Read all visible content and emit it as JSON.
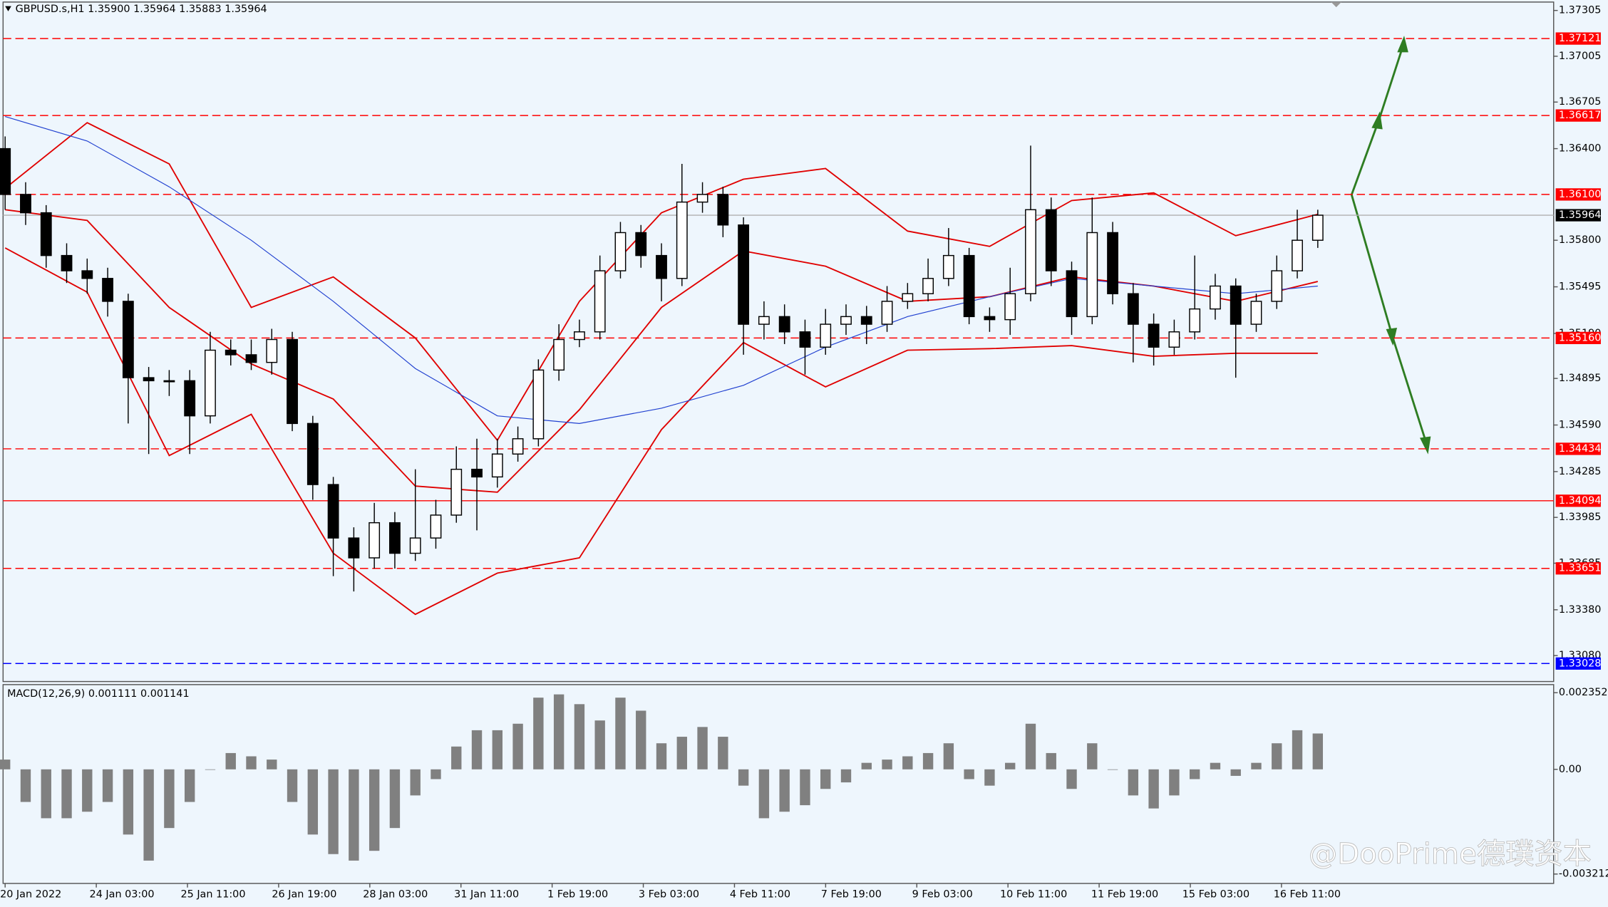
{
  "chart_data": {
    "type": "candlestick",
    "title": "GBPUSD.s,H1  1.35900 1.35964 1.35883 1.35964",
    "candles": {
      "open": [
        1.364,
        1.361,
        1.3598,
        1.357,
        1.356,
        1.3555,
        1.354,
        1.349,
        1.3488,
        1.3488,
        1.3465,
        1.3508,
        1.3505,
        1.35,
        1.3515,
        1.346,
        1.342,
        1.3385,
        1.3372,
        1.3395,
        1.3375,
        1.3385,
        1.34,
        1.343,
        1.3425,
        1.344,
        1.345,
        1.3495,
        1.3515,
        1.352,
        1.356,
        1.3585,
        1.357,
        1.3555,
        1.3605,
        1.361,
        1.359,
        1.3525,
        1.353,
        1.352,
        1.351,
        1.3525,
        1.353,
        1.3525,
        1.354,
        1.3545,
        1.3555,
        1.357,
        1.353,
        1.3528,
        1.3545,
        1.36,
        1.356,
        1.353,
        1.3585,
        1.3545,
        1.3525,
        1.351,
        1.352,
        1.3535,
        1.355,
        1.3525,
        1.354,
        1.356,
        1.358
      ],
      "high": [
        1.3648,
        1.3618,
        1.3603,
        1.3578,
        1.3568,
        1.3562,
        1.3545,
        1.3497,
        1.3495,
        1.3495,
        1.352,
        1.3515,
        1.3515,
        1.3522,
        1.352,
        1.3465,
        1.3425,
        1.3392,
        1.3408,
        1.3402,
        1.343,
        1.341,
        1.3445,
        1.345,
        1.345,
        1.3458,
        1.3502,
        1.3525,
        1.3528,
        1.357,
        1.3592,
        1.359,
        1.3578,
        1.363,
        1.3618,
        1.3615,
        1.3595,
        1.354,
        1.3538,
        1.3528,
        1.3535,
        1.3538,
        1.3537,
        1.355,
        1.3552,
        1.3568,
        1.3588,
        1.3575,
        1.3536,
        1.3562,
        1.3642,
        1.3608,
        1.3566,
        1.3608,
        1.3592,
        1.3552,
        1.3532,
        1.3528,
        1.357,
        1.3558,
        1.3555,
        1.3545,
        1.357,
        1.36,
        1.36
      ],
      "low": [
        1.36,
        1.359,
        1.3562,
        1.3552,
        1.3545,
        1.353,
        1.346,
        1.344,
        1.3478,
        1.344,
        1.346,
        1.3498,
        1.3495,
        1.3492,
        1.3455,
        1.341,
        1.336,
        1.335,
        1.3365,
        1.3365,
        1.337,
        1.3378,
        1.3395,
        1.339,
        1.3418,
        1.3435,
        1.3445,
        1.3488,
        1.351,
        1.3515,
        1.3555,
        1.3562,
        1.354,
        1.355,
        1.3598,
        1.3582,
        1.3505,
        1.3515,
        1.3512,
        1.3492,
        1.3505,
        1.3518,
        1.3512,
        1.352,
        1.3535,
        1.354,
        1.355,
        1.3525,
        1.352,
        1.3518,
        1.354,
        1.355,
        1.3518,
        1.3525,
        1.3538,
        1.35,
        1.3498,
        1.3505,
        1.3515,
        1.3528,
        1.349,
        1.352,
        1.3535,
        1.3555,
        1.3575
      ],
      "close": [
        1.361,
        1.3598,
        1.357,
        1.356,
        1.3555,
        1.354,
        1.349,
        1.3488,
        1.3488,
        1.3465,
        1.3508,
        1.3505,
        1.35,
        1.3515,
        1.346,
        1.342,
        1.3385,
        1.3372,
        1.3395,
        1.3375,
        1.3385,
        1.34,
        1.343,
        1.3425,
        1.344,
        1.345,
        1.3495,
        1.3515,
        1.352,
        1.356,
        1.3585,
        1.357,
        1.3555,
        1.3605,
        1.361,
        1.359,
        1.3525,
        1.353,
        1.352,
        1.351,
        1.3525,
        1.353,
        1.3525,
        1.354,
        1.3545,
        1.3555,
        1.357,
        1.353,
        1.3528,
        1.3545,
        1.36,
        1.356,
        1.353,
        1.3585,
        1.3545,
        1.3525,
        1.351,
        1.352,
        1.3535,
        1.355,
        1.3525,
        1.354,
        1.356,
        1.358,
        1.35964
      ]
    },
    "series": [
      {
        "color": "#e00000",
        "x": [
          0,
          4,
          8,
          12,
          16,
          20,
          24,
          28,
          32,
          36,
          40,
          44,
          48,
          52,
          56,
          60,
          64
        ],
        "values": [
          1.3614,
          1.3657,
          1.363,
          1.3536,
          1.3556,
          1.3516,
          1.3449,
          1.354,
          1.3598,
          1.362,
          1.3627,
          1.3586,
          1.3576,
          1.3606,
          1.3611,
          1.3583,
          1.3597
        ]
      },
      {
        "color": "#e00000",
        "x": [
          0,
          4,
          8,
          12,
          16,
          20,
          24,
          28,
          32,
          36,
          40,
          44,
          48,
          52,
          56,
          60,
          64
        ],
        "values": [
          1.36,
          1.3593,
          1.3536,
          1.3499,
          1.3476,
          1.3419,
          1.3415,
          1.3469,
          1.3536,
          1.3573,
          1.3563,
          1.354,
          1.3543,
          1.3556,
          1.355,
          1.354,
          1.3553
        ]
      },
      {
        "color": "#e00000",
        "x": [
          0,
          4,
          8,
          12,
          16,
          20,
          24,
          28,
          32,
          36,
          40,
          44,
          48,
          52,
          56,
          60,
          64
        ],
        "values": [
          1.3575,
          1.3546,
          1.3439,
          1.3466,
          1.3375,
          1.3335,
          1.3362,
          1.3372,
          1.3456,
          1.3513,
          1.3484,
          1.3508,
          1.3509,
          1.3511,
          1.3504,
          1.3506,
          1.3506
        ]
      },
      {
        "color": "#2040d0",
        "x": [
          0,
          4,
          8,
          12,
          16,
          20,
          24,
          28,
          32,
          36,
          40,
          44,
          48,
          52,
          56,
          60,
          64
        ],
        "values": [
          1.3661,
          1.3645,
          1.3615,
          1.358,
          1.354,
          1.3496,
          1.3465,
          1.346,
          1.347,
          1.3485,
          1.351,
          1.353,
          1.3543,
          1.3555,
          1.355,
          1.3545,
          1.355
        ]
      }
    ],
    "levels": [
      {
        "value": 1.37121,
        "color": "#ff0000",
        "dashed": true
      },
      {
        "value": 1.36617,
        "color": "#ff0000",
        "dashed": true
      },
      {
        "value": 1.361,
        "label": "1.36100",
        "color": "#ff0000",
        "dashed": true
      },
      {
        "value": 1.35964,
        "color": "#000000",
        "dashed": false
      },
      {
        "value": 1.3516,
        "label": "1.35160",
        "color": "#ff0000",
        "dashed": true
      },
      {
        "value": 1.34434,
        "color": "#ff0000",
        "dashed": true
      },
      {
        "value": 1.34094,
        "color": "#ff0000",
        "dashed": false
      },
      {
        "value": 1.33651,
        "color": "#ff0000",
        "dashed": true
      },
      {
        "value": 1.33028,
        "color": "#0000ff",
        "dashed": true
      }
    ],
    "ylim": [
      1.3291,
      1.3736
    ],
    "yticks": [
      1.37305,
      {
        "value": 1.37005,
        "label": "1.37005"
      },
      1.36705,
      {
        "value": 1.364,
        "label": "1.36400"
      },
      {
        "value": 1.358,
        "label": "1.35800"
      },
      1.35495,
      {
        "value": 1.3519,
        "label": "1.35190"
      },
      1.34895,
      {
        "value": 1.3459,
        "label": "1.34590"
      },
      1.34285,
      1.33985,
      1.33685,
      {
        "value": 1.3338,
        "label": "1.33380"
      },
      {
        "value": 1.3308,
        "label": "1.33080"
      }
    ],
    "x_labels": [
      "20 Jan 2022",
      "24 Jan 03:00",
      "25 Jan 11:00",
      "26 Jan 19:00",
      "28 Jan 03:00",
      "31 Jan 11:00",
      "1 Feb 19:00",
      "3 Feb 03:00",
      "4 Feb 11:00",
      "7 Feb 19:00",
      "9 Feb 03:00",
      "10 Feb 11:00",
      "11 Feb 19:00",
      "15 Feb 03:00",
      "16 Feb 11:00"
    ],
    "macd": {
      "title": "MACD(12,26,9) 0.001111 0.001141",
      "color": "#808080",
      "values": [
        0.0003,
        -0.001,
        -0.0015,
        -0.0015,
        -0.0013,
        -0.001,
        -0.002,
        -0.0028,
        -0.0018,
        -0.001,
        0.0,
        0.0005,
        0.0004,
        0.0003,
        -0.001,
        -0.002,
        -0.0026,
        -0.0028,
        -0.0025,
        -0.0018,
        -0.0008,
        -0.0003,
        0.0007,
        0.0012,
        0.0012,
        0.0014,
        0.0022,
        0.0023,
        0.002,
        0.0015,
        0.0022,
        0.0018,
        0.0008,
        0.001,
        0.0013,
        0.001,
        -0.0005,
        -0.0015,
        -0.0013,
        -0.0011,
        -0.0006,
        -0.0004,
        0.0002,
        0.0003,
        0.0004,
        0.0005,
        0.0008,
        -0.0003,
        -0.0005,
        0.0002,
        0.0014,
        0.0005,
        -0.0006,
        0.0008,
        0.0,
        -0.0008,
        -0.0012,
        -0.0008,
        -0.0003,
        0.0002,
        -0.0002,
        0.0002,
        0.0008,
        0.0012,
        0.0011
      ],
      "ylim": [
        -0.0035,
        0.0026
      ],
      "yticks": [
        0.002352,
        {
          "value": 0,
          "label": "0.00"
        },
        -0.003212
      ]
    },
    "watermark": "@DooPrime德璞资本"
  }
}
